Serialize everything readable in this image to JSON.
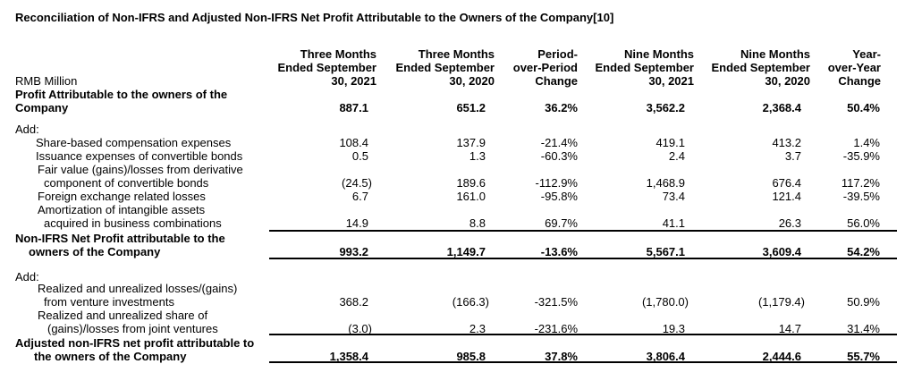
{
  "title": "Reconciliation of Non-IFRS and Adjusted Non-IFRS Net Profit Attributable to the Owners of the Company",
  "title_ref": "[10]",
  "unit_label": "RMB Million",
  "columns": [
    {
      "l1": "Three Months",
      "l2": "Ended September",
      "l3": "30, 2021"
    },
    {
      "l1": "Three Months",
      "l2": "Ended September",
      "l3": "30, 2020"
    },
    {
      "l1": "Period-",
      "l2": "over-Period",
      "l3": "Change"
    },
    {
      "l1": "Nine Months",
      "l2": "Ended September",
      "l3": "30, 2021"
    },
    {
      "l1": "Nine Months",
      "l2": "Ended September",
      "l3": "30, 2020"
    },
    {
      "l1": "Year-",
      "l2": "over-Year",
      "l3": "Change"
    }
  ],
  "profit": {
    "l1": "Profit Attributable to the owners of the",
    "l2": "Company",
    "values": [
      "887.1",
      "651.2",
      "36.2%",
      "3,562.2",
      "2,368.4",
      "50.4%"
    ]
  },
  "add1": "Add:",
  "adjustments1": [
    {
      "l1": "Share-based compensation expenses",
      "values": [
        "108.4",
        "137.9",
        "-21.4%",
        "419.1",
        "413.2",
        "1.4%"
      ]
    },
    {
      "l1": "Issuance expenses of convertible bonds",
      "values": [
        "0.5",
        "1.3",
        "-60.3%",
        "2.4",
        "3.7",
        "-35.9%"
      ]
    },
    {
      "l1": "Fair value (gains)/losses from derivative",
      "l2": "component of convertible bonds",
      "values": [
        "(24.5)",
        "189.6",
        "-112.9%",
        "1,468.9",
        "676.4",
        "117.2%"
      ]
    },
    {
      "l1": "Foreign exchange related losses",
      "values": [
        "6.7",
        "161.0",
        "-95.8%",
        "73.4",
        "121.4",
        "-39.5%"
      ]
    },
    {
      "l1": "Amortization of intangible assets",
      "l2": "acquired in business combinations",
      "values": [
        "14.9",
        "8.8",
        "69.7%",
        "41.1",
        "26.3",
        "56.0%"
      ]
    }
  ],
  "non_ifrs": {
    "l1": "Non-IFRS Net Profit attributable to the",
    "l2": "owners of the Company",
    "values": [
      "993.2",
      "1,149.7",
      "-13.6%",
      "5,567.1",
      "3,609.4",
      "54.2%"
    ]
  },
  "add2": "Add:",
  "adjustments2": [
    {
      "l1": "Realized and unrealized losses/(gains)",
      "l2": "from venture investments",
      "values": [
        "368.2",
        "(166.3)",
        "-321.5%",
        "(1,780.0)",
        "(1,179.4)",
        "50.9%"
      ]
    },
    {
      "l1": "Realized and unrealized share of",
      "l2": "(gains)/losses from joint ventures",
      "values": [
        "(3.0)",
        "2.3",
        "-231.6%",
        "19.3",
        "14.7",
        "31.4%"
      ]
    }
  ],
  "adjusted": {
    "l1": "Adjusted non-IFRS net profit attributable to",
    "l2": "the owners of the Company",
    "values": [
      "1,358.4",
      "985.8",
      "37.8%",
      "3,806.4",
      "2,444.6",
      "55.7%"
    ]
  }
}
